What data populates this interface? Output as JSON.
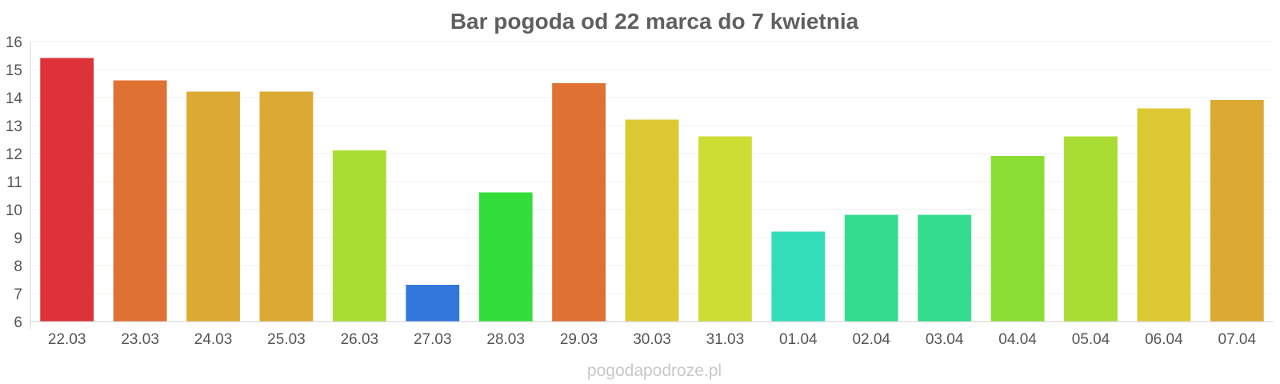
{
  "watermark": "pogodapodroze.pl",
  "chart_data": {
    "type": "bar",
    "title": "Bar pogoda od 22 marca do 7 kwietnia",
    "xlabel": "",
    "ylabel": "",
    "ylim": [
      6,
      16
    ],
    "yticks": [
      6,
      7,
      8,
      9,
      10,
      11,
      12,
      13,
      14,
      15,
      16
    ],
    "grid": true,
    "categories": [
      "22.03",
      "23.03",
      "24.03",
      "25.03",
      "26.03",
      "27.03",
      "28.03",
      "29.03",
      "30.03",
      "31.03",
      "01.04",
      "02.04",
      "03.04",
      "04.04",
      "05.04",
      "06.04",
      "07.04"
    ],
    "values": [
      15.4,
      14.6,
      14.2,
      14.2,
      12.1,
      7.3,
      10.6,
      14.5,
      13.2,
      12.6,
      9.2,
      9.8,
      9.8,
      11.9,
      12.6,
      13.6,
      13.9
    ],
    "colors": [
      "#dd3237",
      "#df7133",
      "#dca933",
      "#dca933",
      "#aadd33",
      "#3377dd",
      "#33dd3a",
      "#df7133",
      "#dcc933",
      "#cddd33",
      "#33ddb9",
      "#33dd8d",
      "#33dd8d",
      "#8add33",
      "#aadd33",
      "#dcc933",
      "#dca933"
    ]
  }
}
